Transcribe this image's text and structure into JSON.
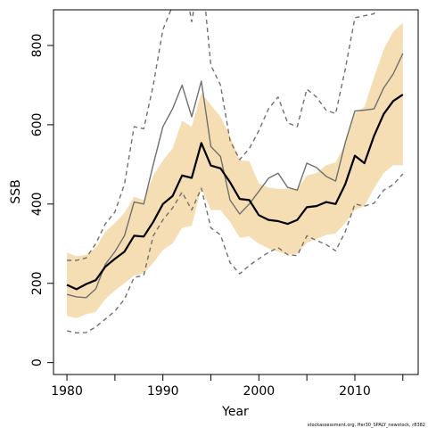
{
  "chart_data": {
    "type": "line",
    "xlabel": "Year",
    "ylabel": "SSB",
    "xlim": [
      1978.6,
      1976.6
    ],
    "ylim": [
      -30,
      890
    ],
    "x_ticks": [
      1980,
      1990,
      2000,
      2010
    ],
    "y_ticks": [
      0,
      200,
      400,
      600,
      800
    ],
    "grid": false,
    "legend": "none",
    "x": [
      1980,
      1981,
      1982,
      1983,
      1984,
      1985,
      1986,
      1987,
      1988,
      1989,
      1990,
      1991,
      1992,
      1993,
      1994,
      1995,
      1996,
      1997,
      1998,
      1999,
      2000,
      2001,
      2002,
      2003,
      2004,
      2005,
      2006,
      2007,
      2008,
      2009,
      2010,
      2011,
      2012,
      2013,
      2014,
      2015
    ],
    "band": {
      "lower": [
        118,
        112,
        122,
        128,
        160,
        182,
        200,
        220,
        225,
        252,
        284,
        300,
        340,
        345,
        440,
        385,
        385,
        355,
        315,
        318,
        300,
        288,
        280,
        272,
        275,
        302,
        312,
        322,
        326,
        352,
        385,
        395,
        440,
        478,
        498,
        498
      ],
      "upper": [
        278,
        268,
        272,
        290,
        330,
        352,
        378,
        418,
        410,
        472,
        510,
        540,
        610,
        595,
        680,
        650,
        620,
        572,
        510,
        508,
        452,
        442,
        438,
        438,
        436,
        472,
        478,
        498,
        505,
        552,
        630,
        645,
        720,
        790,
        835,
        858
      ],
      "color": "#f5deb3"
    },
    "series": [
      {
        "values": [
          196,
          185,
          198,
          208,
          242,
          262,
          280,
          320,
          318,
          355,
          400,
          420,
          472,
          466,
          554,
          497,
          490,
          455,
          413,
          410,
          372,
          360,
          357,
          350,
          360,
          392,
          395,
          405,
          400,
          450,
          522,
          503,
          572,
          627,
          660,
          676
        ],
        "color": "#000000",
        "width": 2.2,
        "dash": ""
      },
      {
        "values": [
          172,
          166,
          164,
          186,
          248,
          280,
          320,
          405,
          400,
          500,
          595,
          640,
          700,
          620,
          710,
          545,
          520,
          410,
          375,
          400,
          432,
          465,
          478,
          442,
          435,
          503,
          492,
          470,
          458,
          555,
          635,
          637,
          640,
          693,
          728,
          780
        ],
        "color": "#707070",
        "width": 1.4,
        "dash": ""
      },
      {
        "values": [
          80,
          75,
          76,
          90,
          110,
          130,
          160,
          215,
          220,
          320,
          360,
          390,
          430,
          385,
          440,
          340,
          322,
          252,
          224,
          245,
          262,
          278,
          290,
          272,
          270,
          320,
          308,
          298,
          282,
          330,
          400,
          395,
          402,
          435,
          449,
          476
        ],
        "color": "#707070",
        "width": 1.4,
        "dash": "5,4"
      },
      {
        "values": [
          258,
          258,
          264,
          300,
          350,
          380,
          450,
          595,
          590,
          700,
          840,
          900,
          990,
          860,
          1000,
          750,
          700,
          560,
          512,
          540,
          585,
          640,
          670,
          605,
          595,
          690,
          670,
          637,
          628,
          740,
          870,
          875,
          880,
          940,
          990,
          1020
        ],
        "color": "#707070",
        "width": 1.4,
        "dash": "5,4"
      }
    ],
    "footnote": "stockassessment.org, Her30_SPALY_newstock, r8382"
  }
}
